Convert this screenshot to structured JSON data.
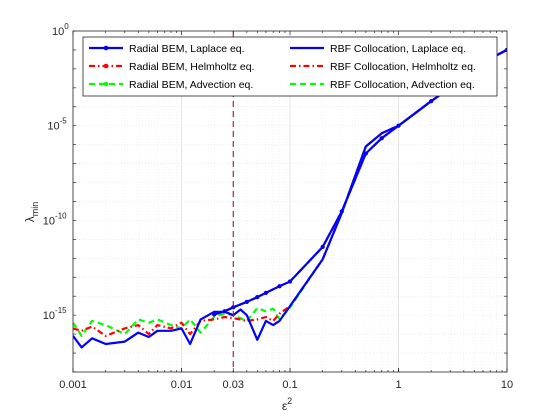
{
  "chart_data": {
    "type": "line",
    "xlabel": "ε",
    "xlabel_sup": "2",
    "ylabel": "λ",
    "ylabel_sub": "min",
    "x_scale": "log",
    "y_scale": "log",
    "xlim": [
      0.001,
      10
    ],
    "ylim": [
      1e-18,
      1
    ],
    "grid": true,
    "minor_grid": true,
    "x_ticks": [
      {
        "value": 0.001,
        "label": "0.001"
      },
      {
        "value": 0.01,
        "label": "0.01"
      },
      {
        "value": 0.03,
        "label": "0.03"
      },
      {
        "value": 0.1,
        "label": "0.1"
      },
      {
        "value": 1,
        "label": "1"
      },
      {
        "value": 10,
        "label": "10"
      }
    ],
    "y_ticks": [
      {
        "value": 1e-15,
        "base": "10",
        "exp": "-15"
      },
      {
        "value": 1e-10,
        "base": "10",
        "exp": "-10"
      },
      {
        "value": 1e-05,
        "base": "10",
        "exp": "-5"
      },
      {
        "value": 1,
        "base": "10",
        "exp": "0"
      }
    ],
    "reference_line": {
      "x": 0.03,
      "color": "#a2142f",
      "style": "dashed"
    },
    "legend_position": "top",
    "series": [
      {
        "name": "Radial BEM, Laplace eq.",
        "color": "#0000ff",
        "dash": "solid",
        "marker": "dot",
        "points": [
          [
            0.02,
            1.1e-15
          ],
          [
            0.025,
            1.6e-15
          ],
          [
            0.03,
            2.6e-15
          ],
          [
            0.04,
            5e-15
          ],
          [
            0.05,
            9e-15
          ],
          [
            0.06,
            1.5e-14
          ],
          [
            0.08,
            3.4e-14
          ],
          [
            0.1,
            6e-14
          ],
          [
            0.2,
            4e-12
          ],
          [
            0.3,
            3e-10
          ],
          [
            0.5,
            3.4e-07
          ],
          [
            0.7,
            2.2e-06
          ],
          [
            1,
            1e-05
          ],
          [
            2,
            0.0002
          ],
          [
            3,
            0.001
          ],
          [
            5,
            0.01
          ],
          [
            7,
            0.035
          ],
          [
            10,
            0.1
          ]
        ]
      },
      {
        "name": "Radial BEM, Helmholtz eq.",
        "color": "#ff0000",
        "dash": "dashdot",
        "marker": "dot",
        "points": [
          [
            0.02,
            1.1e-15
          ],
          [
            0.025,
            1.6e-15
          ],
          [
            0.03,
            2.6e-15
          ],
          [
            0.04,
            5e-15
          ],
          [
            0.05,
            9e-15
          ],
          [
            0.06,
            1.5e-14
          ],
          [
            0.08,
            3.4e-14
          ],
          [
            0.1,
            6e-14
          ],
          [
            0.2,
            4e-12
          ],
          [
            0.3,
            3e-10
          ],
          [
            0.5,
            3.4e-07
          ],
          [
            0.7,
            2.2e-06
          ],
          [
            1,
            1e-05
          ],
          [
            2,
            0.0002
          ],
          [
            3,
            0.001
          ],
          [
            5,
            0.01
          ],
          [
            7,
            0.035
          ],
          [
            10,
            0.1
          ]
        ]
      },
      {
        "name": "Radial BEM, Advection eq.",
        "color": "#00ff00",
        "dash": "dashed",
        "marker": "dot",
        "points": [
          [
            0.02,
            1.1e-15
          ],
          [
            0.025,
            1.6e-15
          ],
          [
            0.03,
            2.6e-15
          ],
          [
            0.04,
            5e-15
          ],
          [
            0.05,
            9e-15
          ],
          [
            0.06,
            1.5e-14
          ],
          [
            0.08,
            3.4e-14
          ],
          [
            0.1,
            6e-14
          ],
          [
            0.2,
            4e-12
          ],
          [
            0.3,
            3e-10
          ],
          [
            0.5,
            3.4e-07
          ],
          [
            0.7,
            2.2e-06
          ],
          [
            1,
            1e-05
          ],
          [
            2,
            0.0002
          ],
          [
            3,
            0.001
          ],
          [
            5,
            0.01
          ],
          [
            7,
            0.035
          ],
          [
            10,
            0.1
          ]
        ]
      },
      {
        "name": "RBF Collocation, Laplace eq.",
        "color": "#0000ff",
        "dash": "solid",
        "marker": "none",
        "points": [
          [
            0.001,
            8e-17
          ],
          [
            0.0012,
            2e-17
          ],
          [
            0.0015,
            6e-17
          ],
          [
            0.002,
            3e-17
          ],
          [
            0.003,
            4e-17
          ],
          [
            0.004,
            1.2e-16
          ],
          [
            0.005,
            7e-17
          ],
          [
            0.006,
            1.5e-16
          ],
          [
            0.008,
            1.5e-16
          ],
          [
            0.01,
            2e-16
          ],
          [
            0.012,
            3e-17
          ],
          [
            0.015,
            6e-16
          ],
          [
            0.02,
            1.5e-15
          ],
          [
            0.025,
            1.5e-15
          ],
          [
            0.03,
            1e-15
          ],
          [
            0.035,
            2e-15
          ],
          [
            0.04,
            1e-15
          ],
          [
            0.05,
            5e-17
          ],
          [
            0.06,
            5e-16
          ],
          [
            0.07,
            3e-16
          ],
          [
            0.08,
            5e-16
          ],
          [
            0.1,
            3e-15
          ],
          [
            0.2,
            9e-13
          ],
          [
            0.3,
            2.5e-10
          ],
          [
            0.5,
            8e-07
          ],
          [
            0.7,
            4e-06
          ],
          [
            1,
            1e-05
          ],
          [
            2,
            0.0002
          ],
          [
            3,
            0.001
          ],
          [
            5,
            0.01
          ],
          [
            7,
            0.035
          ],
          [
            10,
            0.1
          ]
        ]
      },
      {
        "name": "RBF Collocation, Helmholtz eq.",
        "color": "#ff0000",
        "dash": "dashdot",
        "marker": "none",
        "points": [
          [
            0.001,
            2e-16
          ],
          [
            0.0012,
            1.5e-16
          ],
          [
            0.0015,
            2.5e-16
          ],
          [
            0.002,
            8e-17
          ],
          [
            0.003,
            2e-16
          ],
          [
            0.004,
            3e-16
          ],
          [
            0.005,
            1e-16
          ],
          [
            0.006,
            3e-16
          ],
          [
            0.008,
            2e-16
          ],
          [
            0.01,
            4e-16
          ],
          [
            0.012,
            1e-16
          ],
          [
            0.015,
            5e-16
          ],
          [
            0.02,
            6e-16
          ],
          [
            0.025,
            8e-16
          ],
          [
            0.03,
            7e-16
          ],
          [
            0.04,
            5e-16
          ],
          [
            0.05,
            6e-16
          ],
          [
            0.06,
            8e-16
          ],
          [
            0.07,
            5e-16
          ],
          [
            0.08,
            1.2e-15
          ],
          [
            0.1,
            3e-15
          ],
          [
            0.2,
            9e-13
          ],
          [
            0.3,
            2.5e-10
          ],
          [
            0.5,
            8e-07
          ],
          [
            0.7,
            4e-06
          ],
          [
            1,
            1e-05
          ],
          [
            2,
            0.0002
          ],
          [
            3,
            0.001
          ],
          [
            5,
            0.01
          ],
          [
            7,
            0.035
          ],
          [
            10,
            0.1
          ]
        ]
      },
      {
        "name": "RBF Collocation, Advection eq.",
        "color": "#00ff00",
        "dash": "dashed",
        "marker": "none",
        "points": [
          [
            0.001,
            4e-16
          ],
          [
            0.0012,
            8e-17
          ],
          [
            0.0015,
            5e-16
          ],
          [
            0.002,
            3e-16
          ],
          [
            0.003,
            1e-16
          ],
          [
            0.004,
            6e-16
          ],
          [
            0.005,
            4e-16
          ],
          [
            0.006,
            6e-16
          ],
          [
            0.008,
            3e-16
          ],
          [
            0.01,
            2e-16
          ],
          [
            0.012,
            6e-16
          ],
          [
            0.015,
            1.2e-16
          ],
          [
            0.02,
            8e-16
          ],
          [
            0.025,
            1.2e-15
          ],
          [
            0.03,
            1e-15
          ],
          [
            0.04,
            5e-16
          ],
          [
            0.05,
            2.4e-15
          ],
          [
            0.06,
            1.6e-15
          ],
          [
            0.07,
            2.2e-15
          ],
          [
            0.08,
            6e-16
          ],
          [
            0.1,
            2.5e-15
          ],
          [
            0.2,
            9e-13
          ],
          [
            0.3,
            2.5e-10
          ],
          [
            0.5,
            8e-07
          ],
          [
            0.7,
            4e-06
          ],
          [
            1,
            1e-05
          ],
          [
            2,
            0.0002
          ],
          [
            3,
            0.001
          ],
          [
            5,
            0.01
          ],
          [
            7,
            0.035
          ],
          [
            10,
            0.1
          ]
        ]
      }
    ]
  }
}
